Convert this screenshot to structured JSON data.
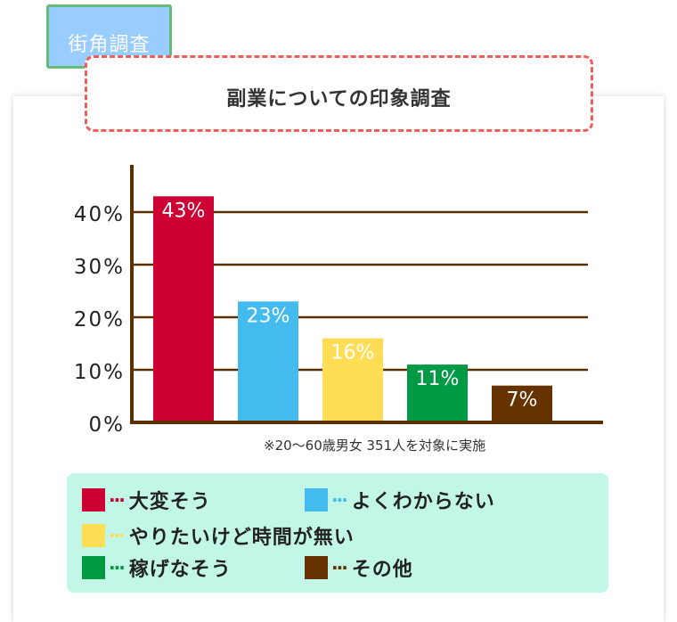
{
  "tag": "街角調査",
  "title": "副業についての印象調査",
  "note": "※20～60歳男女 351人を対象に実施",
  "colors": {
    "axis": "#5a3000",
    "grid": "#5a3000",
    "s1": "#cc0033",
    "s2": "#44bbee",
    "s3": "#ffdd55",
    "s4": "#009944",
    "s5": "#663300"
  },
  "chart_data": {
    "type": "bar",
    "categories": [
      "大変そう",
      "よくわからない",
      "やりたいけど時間が無い",
      "稼げなそう",
      "その他"
    ],
    "values": [
      43,
      23,
      16,
      11,
      7
    ],
    "value_labels": [
      "43%",
      "23%",
      "16%",
      "11%",
      "7%"
    ],
    "ytick_labels": [
      "0%",
      "10%",
      "20%",
      "30%",
      "40%"
    ],
    "yticks": [
      0,
      10,
      20,
      30,
      40
    ],
    "ylim": [
      0,
      49
    ],
    "grid": true,
    "legend_position": "bottom"
  },
  "legend": [
    {
      "label": "大変そう",
      "color": "#cc0033"
    },
    {
      "label": "よくわからない",
      "color": "#44bbee"
    },
    {
      "label": "やりたいけど時間が無い",
      "color": "#ffdd55"
    },
    {
      "label": "稼げなそう",
      "color": "#009944"
    },
    {
      "label": "その他",
      "color": "#663300"
    }
  ]
}
